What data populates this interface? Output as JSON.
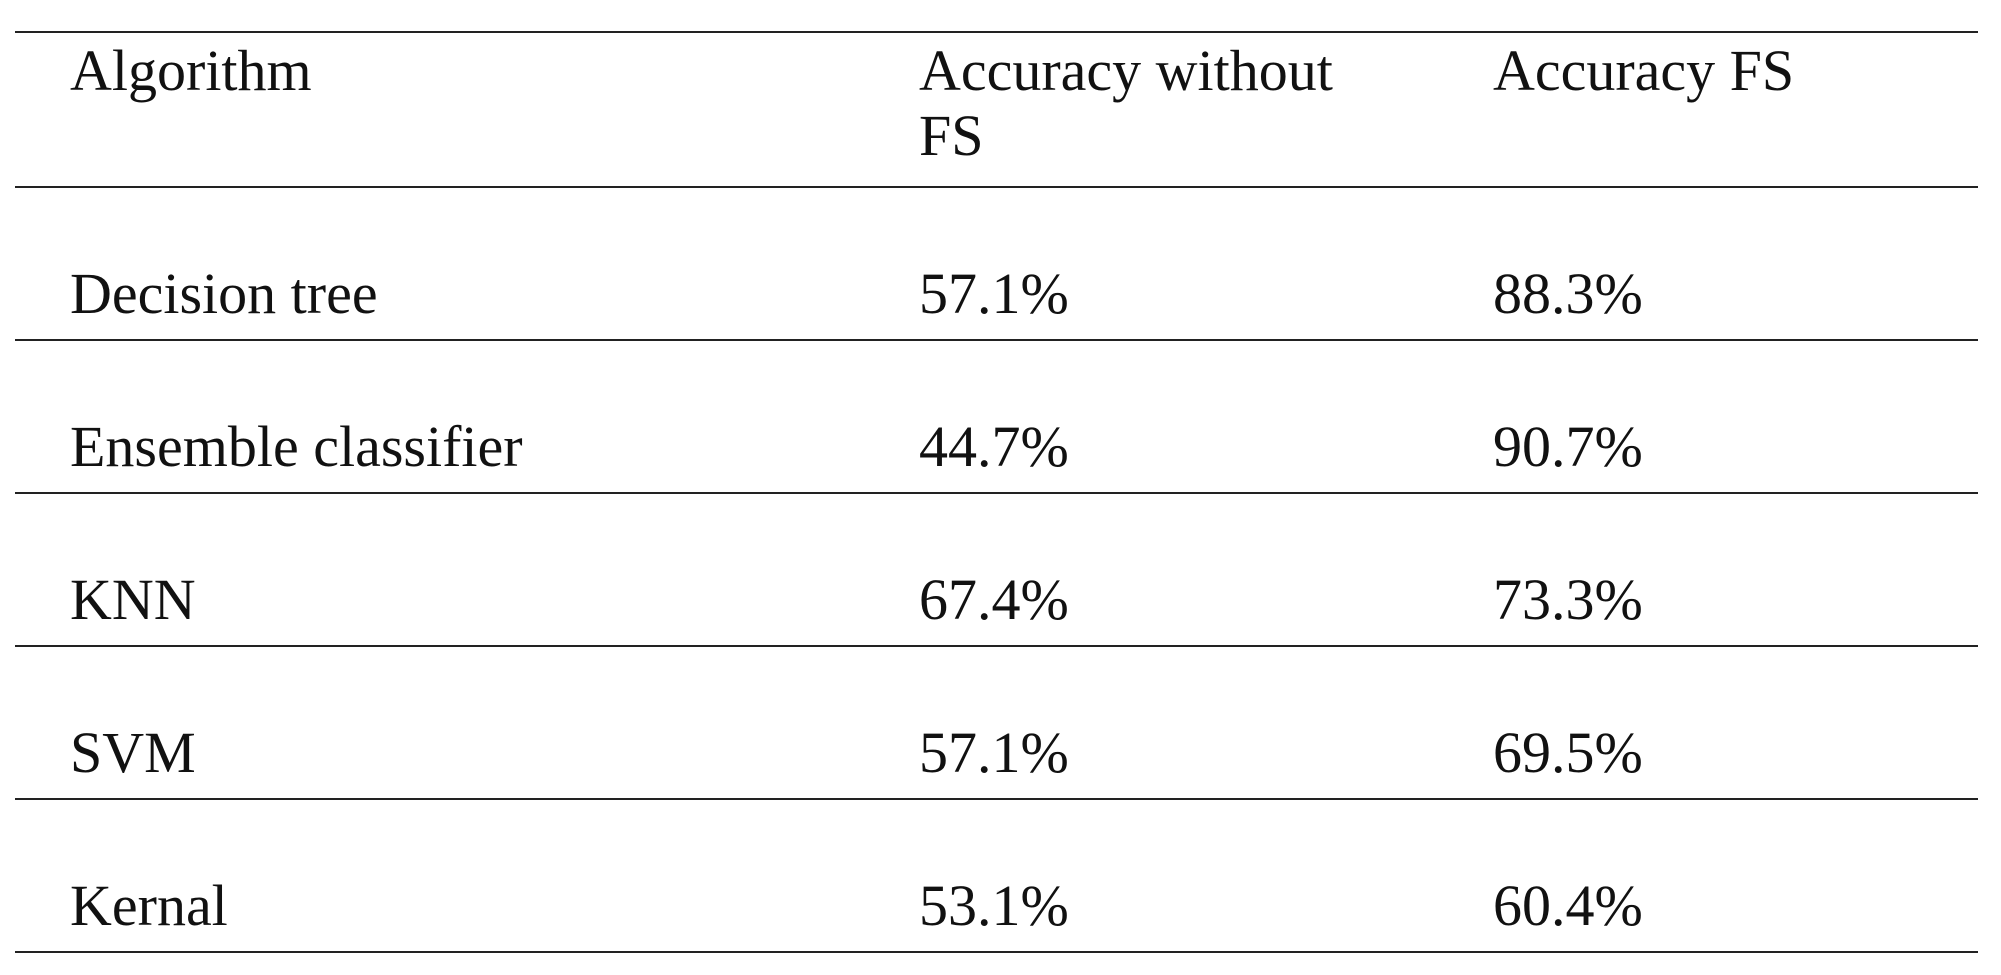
{
  "table": {
    "header": [
      "Algorithm",
      "Accuracy without FS",
      "Accuracy FS"
    ],
    "rows": [
      [
        "Decision tree",
        "57.1%",
        "88.3%"
      ],
      [
        "Ensemble classifier",
        "44.7%",
        "90.7%"
      ],
      [
        "KNN",
        "67.4%",
        "73.3%"
      ],
      [
        "SVM",
        "57.1%",
        "69.5%"
      ],
      [
        "Kernal",
        "53.1%",
        "60.4%"
      ]
    ]
  }
}
